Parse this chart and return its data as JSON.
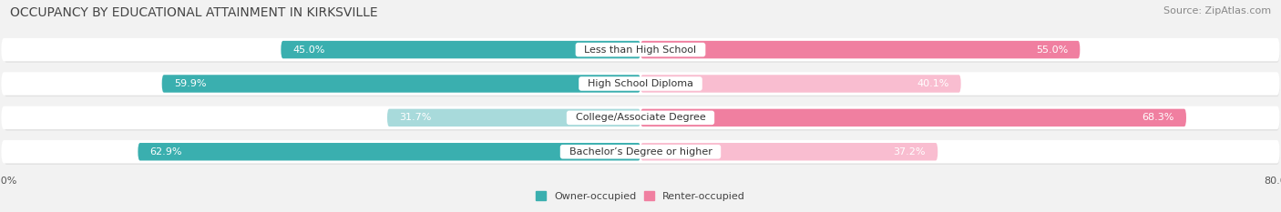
{
  "title": "OCCUPANCY BY EDUCATIONAL ATTAINMENT IN KIRKSVILLE",
  "source": "Source: ZipAtlas.com",
  "categories": [
    "Less than High School",
    "High School Diploma",
    "College/Associate Degree",
    "Bachelor’s Degree or higher"
  ],
  "owner_values": [
    45.0,
    59.9,
    31.7,
    62.9
  ],
  "renter_values": [
    55.0,
    40.1,
    68.3,
    37.2
  ],
  "owner_color_dark": "#3AAFAF",
  "owner_color_light": "#A8DADB",
  "renter_color_dark": "#F07FA0",
  "renter_color_light": "#F9BDD0",
  "owner_label": "Owner-occupied",
  "renter_label": "Renter-occupied",
  "xlim": 80.0,
  "background_color": "#f2f2f2",
  "row_bg_color": "#ffffff",
  "row_shadow_color": "#d8d8d8",
  "title_fontsize": 10,
  "source_fontsize": 8,
  "label_fontsize": 8,
  "value_fontsize": 8,
  "axis_fontsize": 8,
  "legend_fontsize": 8,
  "owner_dark_rows": [
    1,
    3
  ],
  "renter_dark_rows": [
    2
  ]
}
